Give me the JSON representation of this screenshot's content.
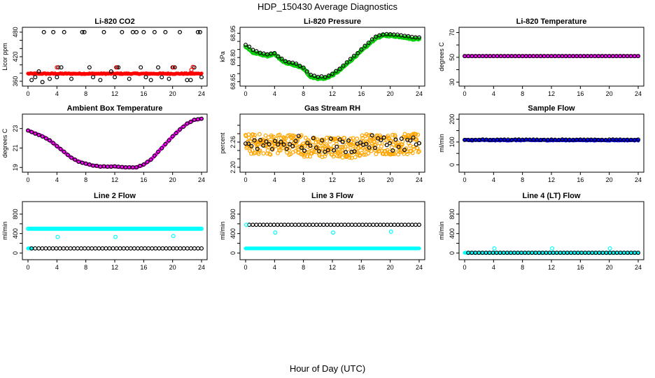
{
  "figure": {
    "title": "HDP_150430  Average Diagnostics",
    "xlabel": "Hour of Day (UTC)"
  },
  "chart_data": [
    {
      "type": "scatter",
      "title": "Li-820 CO2",
      "ylabel": "Licor ppm",
      "xlim": [
        0,
        24
      ],
      "ylim": [
        355,
        485
      ],
      "xticks": [
        0,
        4,
        8,
        12,
        16,
        20,
        24
      ],
      "yticks": [
        360,
        380,
        400,
        420,
        440,
        460,
        480
      ],
      "yticklabels": [
        "360",
        "",
        "",
        "420",
        "",
        "",
        "480"
      ],
      "series": [
        {
          "name": "red-points",
          "color": "#ff0000",
          "pch": "filled",
          "gen": {
            "kind": "noise",
            "base": 378.5,
            "amp": 1.2,
            "n": 193
          }
        },
        {
          "name": "black-circles",
          "color": "#000000",
          "pch": "open",
          "x": [
            0.5,
            1.0,
            1.5,
            2.0,
            2.2,
            3.0,
            3.5,
            4.0,
            4.2,
            4.6,
            5.0,
            6.0,
            7.5,
            7.8,
            8.5,
            9.0,
            10.0,
            10.5,
            11.5,
            12.0,
            12.3,
            12.5,
            13.0,
            14.0,
            14.5,
            15.0,
            15.6,
            16.0,
            16.3,
            17.0,
            17.5,
            18.0,
            18.5,
            19.0,
            19.5,
            20.0,
            20.3,
            21.0,
            22.0,
            22.5,
            23.0,
            23.5,
            23.8,
            24.0
          ],
          "y": [
            363,
            370,
            384,
            358,
            480,
            366,
            480,
            370,
            394,
            394,
            480,
            366,
            480,
            480,
            394,
            370,
            363,
            480,
            384,
            370,
            394,
            394,
            480,
            366,
            480,
            480,
            394,
            480,
            370,
            363,
            480,
            394,
            370,
            480,
            366,
            394,
            394,
            480,
            363,
            363,
            394,
            480,
            480,
            370
          ]
        },
        {
          "name": "red-outliers",
          "color": "#ff0000",
          "pch": "open",
          "x": [
            4.0,
            12.2,
            20.1,
            22.6,
            22.8
          ],
          "y": [
            394,
            394,
            394,
            388,
            395
          ]
        }
      ]
    },
    {
      "type": "scatter",
      "title": "Li-820 Pressure",
      "ylabel": "kPa",
      "xlim": [
        0,
        24
      ],
      "ylim": [
        68.64,
        68.97
      ],
      "xticks": [
        0,
        4,
        8,
        12,
        16,
        20,
        24
      ],
      "yticks": [
        68.65,
        68.7,
        68.75,
        68.8,
        68.85,
        68.9,
        68.95
      ],
      "yticklabels": [
        "68.65",
        "",
        "",
        "68.80",
        "",
        "",
        "68.95"
      ],
      "series": [
        {
          "name": "green-points",
          "color": "#00cc00",
          "pch": "open",
          "gen": {
            "kind": "knots",
            "n": 193,
            "noise": 0.004,
            "kx": [
              0,
              1,
              2,
              3,
              4,
              5,
              6,
              7,
              8,
              9,
              10,
              11,
              12,
              13,
              14,
              15,
              16,
              17,
              18,
              19,
              20,
              21,
              22,
              23,
              24
            ],
            "ky": [
              68.87,
              68.83,
              68.82,
              68.81,
              68.82,
              68.78,
              68.76,
              68.75,
              68.73,
              68.68,
              68.67,
              68.67,
              68.69,
              68.72,
              68.76,
              68.8,
              68.84,
              68.88,
              68.92,
              68.935,
              68.935,
              68.93,
              68.925,
              68.915,
              68.915
            ]
          }
        },
        {
          "name": "black-circles",
          "color": "#000000",
          "pch": "open",
          "gen": {
            "kind": "knots",
            "n": 49,
            "noise": 0.003,
            "kx": [
              0,
              1,
              2,
              3,
              4,
              5,
              6,
              7,
              8,
              9,
              10,
              11,
              12,
              13,
              14,
              15,
              16,
              17,
              18,
              19,
              20,
              21,
              22,
              23,
              24
            ],
            "ky": [
              68.88,
              68.85,
              68.83,
              68.82,
              68.83,
              68.79,
              68.77,
              68.76,
              68.74,
              68.69,
              68.68,
              68.68,
              68.7,
              68.73,
              68.77,
              68.81,
              68.85,
              68.89,
              68.93,
              68.945,
              68.945,
              68.94,
              68.935,
              68.925,
              68.925
            ]
          }
        }
      ]
    },
    {
      "type": "scatter",
      "title": "Li-820 Temperature",
      "ylabel": "degrees C",
      "xlim": [
        0,
        24
      ],
      "ylim": [
        29,
        72
      ],
      "xticks": [
        0,
        4,
        8,
        12,
        16,
        20,
        24
      ],
      "yticks": [
        30,
        40,
        50,
        60,
        70
      ],
      "yticklabels": [
        "30",
        "",
        "50",
        "",
        "70"
      ],
      "series": [
        {
          "name": "magenta-points",
          "color": "#ff00ff",
          "pch": "filled",
          "gen": {
            "kind": "noise",
            "base": 51,
            "amp": 0,
            "n": 193
          }
        },
        {
          "name": "black-circles",
          "color": "#000000",
          "pch": "open",
          "gen": {
            "kind": "noise",
            "base": 51,
            "amp": 0,
            "n": 49
          }
        }
      ]
    },
    {
      "type": "scatter",
      "title": "Ambient Box Temperature",
      "ylabel": "degrees C",
      "xlim": [
        0,
        24
      ],
      "ylim": [
        18.8,
        24.2
      ],
      "xticks": [
        0,
        4,
        8,
        12,
        16,
        20,
        24
      ],
      "yticks": [
        19,
        21,
        23
      ],
      "yticklabels": [
        "19",
        "21",
        "23"
      ],
      "series": [
        {
          "name": "magenta-points",
          "color": "#ff00ff",
          "pch": "filled",
          "gen": {
            "kind": "knots",
            "n": 193,
            "noise": 0.03,
            "kx": [
              0,
              1,
              2,
              3,
              4,
              5,
              6,
              7,
              8,
              9,
              10,
              11,
              12,
              13,
              14,
              15,
              16,
              17,
              18,
              19,
              20,
              21,
              22,
              23,
              24
            ],
            "ky": [
              22.8,
              22.5,
              22.2,
              21.8,
              21.2,
              20.6,
              20.0,
              19.6,
              19.4,
              19.2,
              19.1,
              19.1,
              19.1,
              19.05,
              19.0,
              19.0,
              19.3,
              19.8,
              20.6,
              21.4,
              22.2,
              22.9,
              23.5,
              23.9,
              24.0
            ]
          }
        },
        {
          "name": "black-circles",
          "color": "#000000",
          "pch": "open",
          "gen": {
            "kind": "knots",
            "n": 49,
            "noise": 0.02,
            "kx": [
              0,
              1,
              2,
              3,
              4,
              5,
              6,
              7,
              8,
              9,
              10,
              11,
              12,
              13,
              14,
              15,
              16,
              17,
              18,
              19,
              20,
              21,
              22,
              23,
              24
            ],
            "ky": [
              22.8,
              22.5,
              22.2,
              21.8,
              21.2,
              20.6,
              20.0,
              19.6,
              19.4,
              19.2,
              19.1,
              19.1,
              19.1,
              19.05,
              19.0,
              19.0,
              19.3,
              19.8,
              20.6,
              21.4,
              22.2,
              22.9,
              23.5,
              23.9,
              24.0
            ]
          }
        }
      ]
    },
    {
      "type": "scatter",
      "title": "Gas Stream RH",
      "ylabel": "percent",
      "xlim": [
        0,
        24
      ],
      "ylim": [
        2.195,
        2.32
      ],
      "xticks": [
        0,
        4,
        8,
        12,
        16,
        20,
        24
      ],
      "yticks": [
        2.2,
        2.22,
        2.24,
        2.26,
        2.28,
        2.3
      ],
      "yticklabels": [
        "2.20",
        "",
        "",
        "2.26",
        "",
        ""
      ],
      "series": [
        {
          "name": "orange-points",
          "color": "#ffa500",
          "pch": "open",
          "gen": {
            "kind": "band",
            "n": 400,
            "center": 2.255,
            "spread": 0.025,
            "dip": -0.008
          }
        },
        {
          "name": "black-circles",
          "color": "#000000",
          "pch": "open",
          "gen": {
            "kind": "band",
            "n": 60,
            "center": 2.258,
            "spread": 0.018,
            "dip": -0.006
          }
        }
      ]
    },
    {
      "type": "scatter",
      "title": "Sample Flow",
      "ylabel": "ml/min",
      "xlim": [
        0,
        24
      ],
      "ylim": [
        -20,
        210
      ],
      "xticks": [
        0,
        4,
        8,
        12,
        16,
        20,
        24
      ],
      "yticks": [
        0,
        50,
        100,
        150,
        200
      ],
      "yticklabels": [
        "0",
        "",
        "100",
        "",
        "200"
      ],
      "series": [
        {
          "name": "blue-points",
          "color": "#0000ff",
          "pch": "filled",
          "gen": {
            "kind": "noise",
            "base": 108,
            "amp": 2,
            "n": 193
          }
        },
        {
          "name": "black-circles",
          "color": "#000000",
          "pch": "open",
          "gen": {
            "kind": "noise",
            "base": 110,
            "amp": 1,
            "n": 49
          }
        }
      ]
    },
    {
      "type": "scatter",
      "title": "Line 2 Flow",
      "ylabel": "ml/min",
      "xlim": [
        0,
        24
      ],
      "ylim": [
        -80,
        1000
      ],
      "xticks": [
        0,
        4,
        8,
        12,
        16,
        20,
        24
      ],
      "yticks": [
        0,
        200,
        400,
        600,
        800
      ],
      "yticklabels": [
        "0",
        "",
        "400",
        "",
        "800"
      ],
      "series": [
        {
          "name": "cyan-upper",
          "color": "#00ffff",
          "pch": "open",
          "gen": {
            "kind": "noise",
            "base": 500,
            "amp": 0,
            "n": 193,
            "t0": 0
          }
        },
        {
          "name": "cyan-lower",
          "color": "#00ffff",
          "pch": "filled",
          "gen": {
            "kind": "noise",
            "base": 95,
            "amp": 0,
            "n": 20,
            "t0": 0,
            "t1": 0.6
          }
        },
        {
          "name": "black-circles",
          "color": "#000000",
          "pch": "open",
          "gen": {
            "kind": "noise",
            "base": 95,
            "amp": 0,
            "n": 49,
            "t0": 0.5
          }
        },
        {
          "name": "cyan-outliers",
          "color": "#00ffff",
          "pch": "open",
          "x": [
            4.1,
            12.1,
            20.1
          ],
          "y": [
            330,
            330,
            350
          ]
        }
      ]
    },
    {
      "type": "scatter",
      "title": "Line 3 Flow",
      "ylabel": "ml/min",
      "xlim": [
        0,
        24
      ],
      "ylim": [
        -80,
        1000
      ],
      "xticks": [
        0,
        4,
        8,
        12,
        16,
        20,
        24
      ],
      "yticks": [
        0,
        200,
        400,
        600,
        800
      ],
      "yticklabels": [
        "0",
        "",
        "400",
        "",
        "800"
      ],
      "series": [
        {
          "name": "cyan-lower",
          "color": "#00ffff",
          "pch": "filled",
          "gen": {
            "kind": "noise",
            "base": 95,
            "amp": 0,
            "n": 193,
            "t0": 0
          }
        },
        {
          "name": "black-circles",
          "color": "#000000",
          "pch": "open",
          "gen": {
            "kind": "noise",
            "base": 580,
            "amp": 0,
            "n": 49,
            "t0": 0.5
          }
        },
        {
          "name": "cyan-upper",
          "color": "#00ffff",
          "pch": "open",
          "x": [
            0.1,
            4.1,
            12.1,
            20.1
          ],
          "y": [
            580,
            420,
            420,
            440
          ]
        }
      ]
    },
    {
      "type": "scatter",
      "title": "Line 4 (LT) Flow",
      "ylabel": "ml/min",
      "xlim": [
        0,
        24
      ],
      "ylim": [
        -80,
        1000
      ],
      "xticks": [
        0,
        4,
        8,
        12,
        16,
        20,
        24
      ],
      "yticks": [
        0,
        200,
        400,
        600,
        800
      ],
      "yticklabels": [
        "0",
        "",
        "400",
        "",
        "800"
      ],
      "series": [
        {
          "name": "cyan-points",
          "color": "#00ffff",
          "pch": "filled",
          "gen": {
            "kind": "noise",
            "base": 5,
            "amp": 0,
            "n": 193,
            "t0": 0
          }
        },
        {
          "name": "black-circles",
          "color": "#000000",
          "pch": "open",
          "gen": {
            "kind": "noise",
            "base": 5,
            "amp": 0,
            "n": 49,
            "t0": 0.5
          }
        },
        {
          "name": "cyan-outliers",
          "color": "#00ffff",
          "pch": "open",
          "x": [
            4.1,
            12.1,
            20.1
          ],
          "y": [
            95,
            95,
            95
          ]
        }
      ]
    }
  ]
}
